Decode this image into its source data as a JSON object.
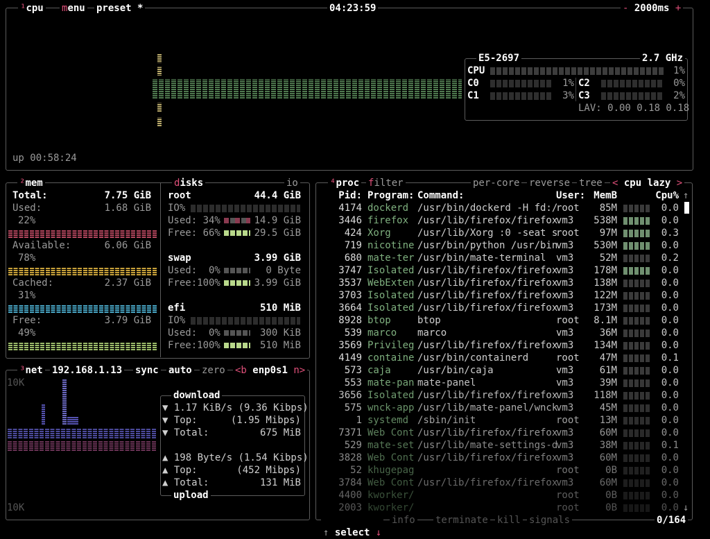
{
  "cpu": {
    "title": "cpu",
    "title_num": "¹",
    "menu": "menu",
    "preset": "preset *",
    "clock": "04:23:59",
    "interval": "2000ms",
    "minus": "-",
    "plus": "+",
    "uptime": "up 00:58:24",
    "model": "E5-2697",
    "freq": "2.7 GHz",
    "total_label": "CPU",
    "total_pct": "1%",
    "total_value": 1,
    "cores": [
      {
        "label": "C0",
        "pct": "1%",
        "value": 1
      },
      {
        "label": "C1",
        "pct": "3%",
        "value": 3
      },
      {
        "label": "C2",
        "pct": "0%",
        "value": 0
      },
      {
        "label": "C3",
        "pct": "2%",
        "value": 2
      }
    ],
    "lav": "LAV: 0.00 0.18 0.18",
    "color": "#6fae6f"
  },
  "mem": {
    "title": "mem",
    "title_num": "²",
    "total_label": "Total:",
    "total": "7.75 GiB",
    "items": [
      {
        "label": "Used:",
        "value": "1.68 GiB",
        "pct": "22%",
        "color": "#b5475f"
      },
      {
        "label": "Available:",
        "value": "6.06 GiB",
        "pct": "78%",
        "color": "#c9a23a"
      },
      {
        "label": "Cached:",
        "value": "2.37 GiB",
        "pct": "31%",
        "color": "#4aa9c9"
      },
      {
        "label": "Free:",
        "value": "3.79 GiB",
        "pct": "49%",
        "color": "#9cbc6a"
      }
    ]
  },
  "disks": {
    "title": "disks",
    "io": "io",
    "root": {
      "name": "root",
      "size": "44.4 GiB",
      "io": "IO%",
      "used": "Used: 34%",
      "used_val": "14.9 GiB",
      "free": "Free: 66%",
      "free_val": "29.5 GiB"
    },
    "swap": {
      "name": "swap",
      "size": "3.99 GiB",
      "used": "Used:  0%",
      "used_val": "0 Byte",
      "free": "Free:100%",
      "free_val": "3.99 GiB"
    },
    "efi": {
      "name": "efi",
      "size": "510 MiB",
      "io": "IO%",
      "used": "Used:  0%",
      "used_val": "300 KiB",
      "free": "Free:100%",
      "free_val": "510 MiB"
    }
  },
  "net": {
    "title": "net",
    "title_num": "³",
    "ip": "192.168.1.13",
    "sync": "sync",
    "auto": "auto",
    "zero": "zero",
    "prev": "<b",
    "iface": "enp0s1",
    "next": "n>",
    "scale_top": "10K",
    "scale_bottom": "10K",
    "download": {
      "title": "download",
      "rate": "▼ 1.17 KiB/s (9.36 Kibps)",
      "top_label": "▼ Top:",
      "top": "(1.95 Mibps)",
      "total_label": "▼ Total:",
      "total": "675 MiB"
    },
    "upload": {
      "title": "upload",
      "rate": "▲ 198 Byte/s (1.54 Kibps)",
      "top_label": "▲ Top:",
      "top": "(452 Mibps)",
      "total_label": "▲ Total:",
      "total": "131 MiB"
    }
  },
  "proc": {
    "title": "proc",
    "title_num": "⁴",
    "filter": "filter",
    "per_core": "per-core",
    "reverse": "reverse",
    "tree": "tree",
    "sort_prev": "<",
    "sort": "cpu lazy",
    "sort_next": ">",
    "headers": {
      "pid": "Pid:",
      "program": "Program:",
      "command": "Command:",
      "user": "User:",
      "mem": "MemB",
      "cpu": "Cpu%"
    },
    "rows": [
      [
        "4174",
        "dockerd",
        "/usr/bin/dockerd -H fd:/",
        "root",
        "85M",
        "0.0"
      ],
      [
        "3446",
        "firefox",
        "/usr/lib/firefox/firefox",
        "vm3",
        "538M",
        "0.0"
      ],
      [
        "424",
        "Xorg",
        "/usr/lib/Xorg :0 -seat s",
        "root",
        "97M",
        "0.3"
      ],
      [
        "719",
        "nicotine",
        "/usr/bin/python /usr/bin",
        "vm3",
        "530M",
        "0.0"
      ],
      [
        "680",
        "mate-ter",
        "/usr/bin/mate-terminal",
        "vm3",
        "52M",
        "0.2"
      ],
      [
        "3747",
        "Isolated",
        "/usr/lib/firefox/firefox",
        "vm3",
        "178M",
        "0.0"
      ],
      [
        "3537",
        "WebExten",
        "/usr/lib/firefox/firefox",
        "vm3",
        "138M",
        "0.0"
      ],
      [
        "3703",
        "Isolated",
        "/usr/lib/firefox/firefox",
        "vm3",
        "122M",
        "0.0"
      ],
      [
        "3664",
        "Isolated",
        "/usr/lib/firefox/firefox",
        "vm3",
        "173M",
        "0.0"
      ],
      [
        "8928",
        "btop",
        "btop",
        "root",
        "8.1M",
        "0.0"
      ],
      [
        "539",
        "marco",
        "marco",
        "vm3",
        "36M",
        "0.0"
      ],
      [
        "3569",
        "Privileg",
        "/usr/lib/firefox/firefox",
        "vm3",
        "134M",
        "0.0"
      ],
      [
        "4149",
        "containe",
        "/usr/bin/containerd",
        "root",
        "47M",
        "0.1"
      ],
      [
        "573",
        "caja",
        "/usr/bin/caja",
        "vm3",
        "61M",
        "0.0"
      ],
      [
        "553",
        "mate-pan",
        "mate-panel",
        "vm3",
        "39M",
        "0.0"
      ],
      [
        "3656",
        "Isolated",
        "/usr/lib/firefox/firefox",
        "vm3",
        "118M",
        "0.0"
      ],
      [
        "575",
        "wnck-app",
        "/usr/lib/mate-panel/wnck",
        "vm3",
        "45M",
        "0.0"
      ],
      [
        "1",
        "systemd",
        "/sbin/init",
        "root",
        "13M",
        "0.0"
      ],
      [
        "7371",
        "Web Cont",
        "/usr/lib/firefox/firefox",
        "vm3",
        "60M",
        "0.0"
      ],
      [
        "529",
        "mate-set",
        "/usr/lib/mate-settings-d",
        "vm3",
        "38M",
        "0.1"
      ],
      [
        "3828",
        "Web Cont",
        "/usr/lib/firefox/firefox",
        "vm3",
        "60M",
        "0.0"
      ],
      [
        "52",
        "khugepag",
        "",
        "root",
        "0B",
        "0.0"
      ],
      [
        "3784",
        "Web Cont",
        "/usr/lib/firefox/firefox",
        "vm3",
        "60M",
        "0.0"
      ],
      [
        "4400",
        "kworker/",
        "",
        "root",
        "0B",
        "0.0"
      ],
      [
        "2003",
        "kworker/",
        "",
        "root",
        "0B",
        "0.0"
      ]
    ],
    "footer": {
      "up": "↑",
      "select": "select",
      "down": "↓",
      "info": "info",
      "terminate": "terminate",
      "kill": "kill",
      "signals": "signals",
      "count": "0/164"
    },
    "scroll_up": "↑",
    "scroll_down": "↓",
    "program_color": "#7fb07f"
  }
}
